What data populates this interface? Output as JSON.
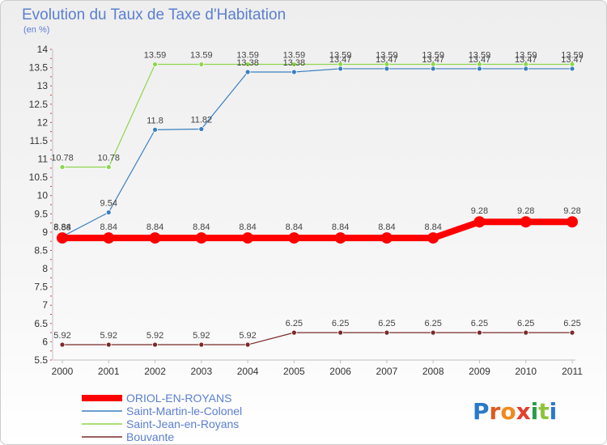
{
  "chart_data": {
    "type": "line",
    "title": "Evolution du Taux de Taxe d'Habitation",
    "subtitle": "(en %)",
    "x": [
      "2000",
      "2001",
      "2002",
      "2003",
      "2004",
      "2005",
      "2006",
      "2007",
      "2008",
      "2009",
      "2010",
      "2011"
    ],
    "ylim": [
      5.5,
      14
    ],
    "yticks": [
      "5.5",
      "6",
      "6.5",
      "7",
      "7.5",
      "8",
      "8.5",
      "9",
      "9.5",
      "10",
      "10.5",
      "11",
      "11.5",
      "12",
      "12.5",
      "13",
      "13.5",
      "14"
    ],
    "grid": false,
    "legend_position": "bottom-left",
    "series": [
      {
        "name": "ORIOL-EN-ROYANS",
        "color": "#ff0000",
        "values": [
          8.84,
          8.84,
          8.84,
          8.84,
          8.84,
          8.84,
          8.84,
          8.84,
          8.84,
          9.28,
          9.28,
          9.28
        ],
        "labels": [
          "8.84",
          "8.84",
          "8.84",
          "8.84",
          "8.84",
          "8.84",
          "8.84",
          "8.84",
          "8.84",
          "9.28",
          "9.28",
          "9.28"
        ]
      },
      {
        "name": "Saint-Martin-le-Colonel",
        "color": "#3a7fc0",
        "values": [
          8.88,
          9.54,
          11.8,
          11.82,
          13.38,
          13.38,
          13.47,
          13.47,
          13.47,
          13.47,
          13.47,
          13.47
        ],
        "labels": [
          "8.88",
          "9.54",
          "11.8",
          "11.82",
          "13.38",
          "13.38",
          "13.47",
          "13.47",
          "13.47",
          "13.47",
          "13.47",
          "13.47"
        ]
      },
      {
        "name": "Saint-Jean-en-Royans",
        "color": "#8ed64c",
        "values": [
          10.78,
          10.78,
          13.59,
          13.59,
          13.59,
          13.59,
          13.59,
          13.59,
          13.59,
          13.59,
          13.59,
          13.59
        ],
        "labels": [
          "10.78",
          "10.78",
          "13.59",
          "13.59",
          "13.59",
          "13.59",
          "13.59",
          "13.59",
          "13.59",
          "13.59",
          "13.59",
          "13.59"
        ]
      },
      {
        "name": "Bouvante",
        "color": "#7a2a2a",
        "values": [
          5.92,
          5.92,
          5.92,
          5.92,
          5.92,
          6.25,
          6.25,
          6.25,
          6.25,
          6.25,
          6.25,
          6.25
        ],
        "labels": [
          "5.92",
          "5.92",
          "5.92",
          "5.92",
          "5.92",
          "6.25",
          "6.25",
          "6.25",
          "6.25",
          "6.25",
          "6.25",
          "6.25"
        ]
      }
    ]
  },
  "brand": {
    "letters": [
      "P",
      "r",
      "o",
      "x",
      "i",
      "t",
      "i"
    ],
    "colors": [
      "#2a7ac8",
      "#e05a1e",
      "#f08a1e",
      "#e23e2e",
      "#2a9a4a",
      "#8fc43a",
      "#2a7ac8"
    ]
  }
}
